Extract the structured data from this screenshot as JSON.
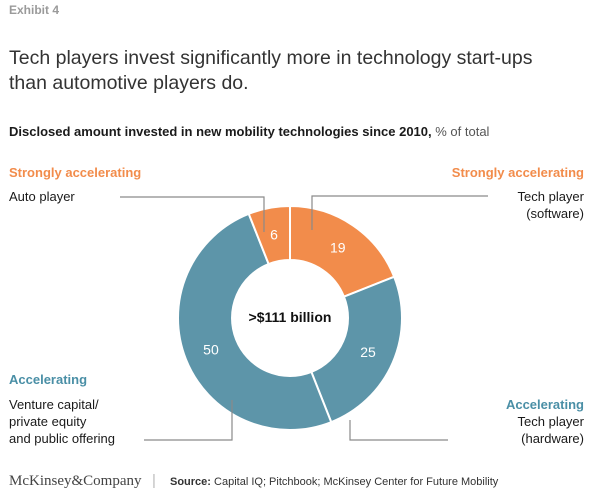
{
  "exhibit": "Exhibit 4",
  "title_lines": [
    "Tech players invest significantly more in technology start-ups",
    "than automotive players do."
  ],
  "subtitle": {
    "main": "Disclosed amount invested in new mobility technologies since 2010,",
    "unit": "% of total"
  },
  "footer": {
    "logo": "McKinsey&Company",
    "separator": "|",
    "source_label": "Source:",
    "source_text": "Capital IQ; Pitchbook; McKinsey Center for Future Mobility"
  },
  "colors": {
    "orange": "#f28c4b",
    "blue": "#5d95a9",
    "leader": "#8a8a8a"
  },
  "chart_data": {
    "type": "pie",
    "subtype": "donut",
    "unit": "% of total",
    "center_label": ">$111 billion",
    "slices": [
      {
        "name": "Tech player (software)",
        "value": 19,
        "group": "Strongly accelerating",
        "color": "#f28c4b"
      },
      {
        "name": "Tech player (hardware)",
        "value": 25,
        "group": "Accelerating",
        "color": "#5d95a9"
      },
      {
        "name": "Venture capital/ private equity and public offering",
        "value": 50,
        "group": "Accelerating",
        "color": "#5d95a9"
      },
      {
        "name": "Auto player",
        "value": 6,
        "group": "Strongly accelerating",
        "color": "#f28c4b"
      }
    ]
  },
  "labels": {
    "auto": {
      "group": "Strongly accelerating",
      "lines": [
        "Auto player"
      ]
    },
    "software": {
      "group": "Strongly accelerating",
      "lines": [
        "Tech player",
        "(software)"
      ]
    },
    "vc": {
      "group": "Accelerating",
      "lines": [
        "Venture capital/",
        "private equity",
        "and public offering"
      ]
    },
    "hardware": {
      "group": "Accelerating",
      "lines": [
        "Tech player",
        "(hardware)"
      ]
    }
  }
}
